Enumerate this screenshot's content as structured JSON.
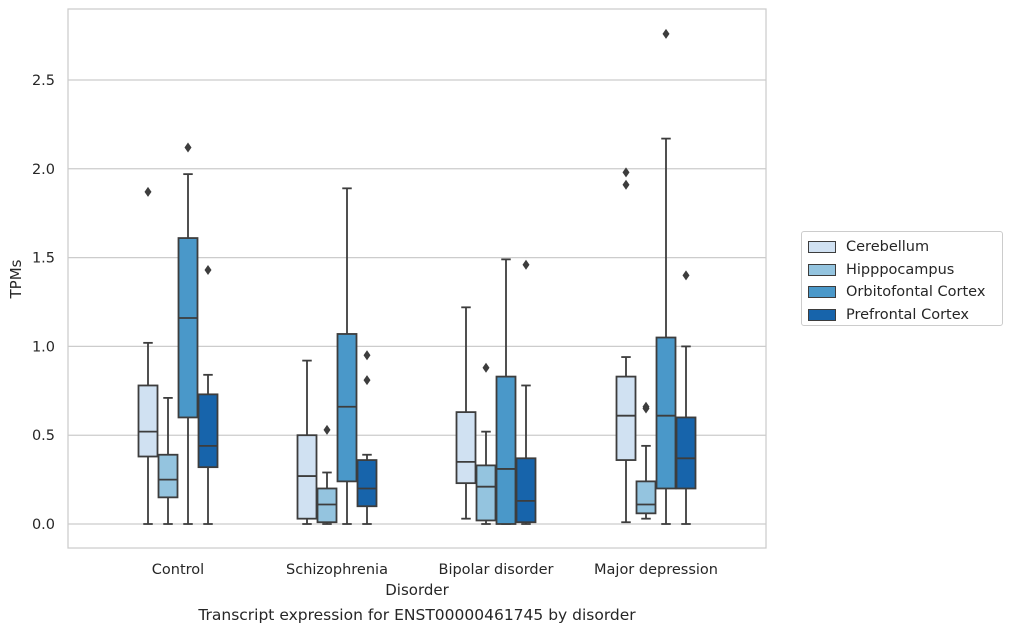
{
  "caption": "Transcript expression for ENST00000461745 by disorder",
  "chart_data": {
    "type": "box",
    "xlabel": "Disorder",
    "ylabel": "TPMs",
    "ylim": [
      -0.13,
      2.92
    ],
    "yticks": [
      0.0,
      0.5,
      1.0,
      1.5,
      2.0,
      2.5
    ],
    "ytick_labels": [
      "0.0",
      "0.5",
      "1.0",
      "1.5",
      "2.0",
      "2.5"
    ],
    "grid": "horizontal",
    "legend_position": "right",
    "categories": [
      "Control",
      "Schizophrenia",
      "Bipolar disorder",
      "Major depression"
    ],
    "series": [
      {
        "name": "Cerebellum",
        "color": "#d0e1f2",
        "boxes": [
          {
            "whislo": 0.0,
            "q1": 0.38,
            "med": 0.52,
            "q3": 0.78,
            "whishi": 1.02,
            "fliers": [
              1.87
            ]
          },
          {
            "whislo": 0.0,
            "q1": 0.03,
            "med": 0.27,
            "q3": 0.5,
            "whishi": 0.92,
            "fliers": []
          },
          {
            "whislo": 0.03,
            "q1": 0.23,
            "med": 0.35,
            "q3": 0.63,
            "whishi": 1.22,
            "fliers": []
          },
          {
            "whislo": 0.01,
            "q1": 0.36,
            "med": 0.61,
            "q3": 0.83,
            "whishi": 0.94,
            "fliers": [
              1.91,
              1.98
            ]
          }
        ]
      },
      {
        "name": "Hipppocampus",
        "color": "#94c4df",
        "boxes": [
          {
            "whislo": 0.0,
            "q1": 0.15,
            "med": 0.25,
            "q3": 0.39,
            "whishi": 0.71,
            "fliers": []
          },
          {
            "whislo": 0.0,
            "q1": 0.01,
            "med": 0.11,
            "q3": 0.2,
            "whishi": 0.29,
            "fliers": [
              0.53
            ]
          },
          {
            "whislo": 0.0,
            "q1": 0.02,
            "med": 0.21,
            "q3": 0.33,
            "whishi": 0.52,
            "fliers": [
              0.88
            ]
          },
          {
            "whislo": 0.03,
            "q1": 0.06,
            "med": 0.11,
            "q3": 0.24,
            "whishi": 0.44,
            "fliers": [
              0.65,
              0.66
            ]
          }
        ]
      },
      {
        "name": "Orbitofontal Cortex",
        "color": "#4a98c9",
        "boxes": [
          {
            "whislo": 0.0,
            "q1": 0.6,
            "med": 1.16,
            "q3": 1.61,
            "whishi": 1.97,
            "fliers": [
              2.12
            ]
          },
          {
            "whislo": 0.0,
            "q1": 0.24,
            "med": 0.66,
            "q3": 1.07,
            "whishi": 1.89,
            "fliers": []
          },
          {
            "whislo": 0.0,
            "q1": 0.0,
            "med": 0.31,
            "q3": 0.83,
            "whishi": 1.49,
            "fliers": []
          },
          {
            "whislo": 0.0,
            "q1": 0.2,
            "med": 0.61,
            "q3": 1.05,
            "whishi": 2.17,
            "fliers": [
              2.76
            ]
          }
        ]
      },
      {
        "name": "Prefrontal Cortex",
        "color": "#1764ab",
        "boxes": [
          {
            "whislo": 0.0,
            "q1": 0.32,
            "med": 0.44,
            "q3": 0.73,
            "whishi": 0.84,
            "fliers": [
              1.43
            ]
          },
          {
            "whislo": 0.0,
            "q1": 0.1,
            "med": 0.2,
            "q3": 0.36,
            "whishi": 0.39,
            "fliers": [
              0.81,
              0.95
            ]
          },
          {
            "whislo": 0.0,
            "q1": 0.01,
            "med": 0.13,
            "q3": 0.37,
            "whishi": 0.78,
            "fliers": [
              1.46
            ]
          },
          {
            "whislo": 0.0,
            "q1": 0.2,
            "med": 0.37,
            "q3": 0.6,
            "whishi": 1.0,
            "fliers": [
              1.4
            ]
          }
        ]
      }
    ]
  }
}
